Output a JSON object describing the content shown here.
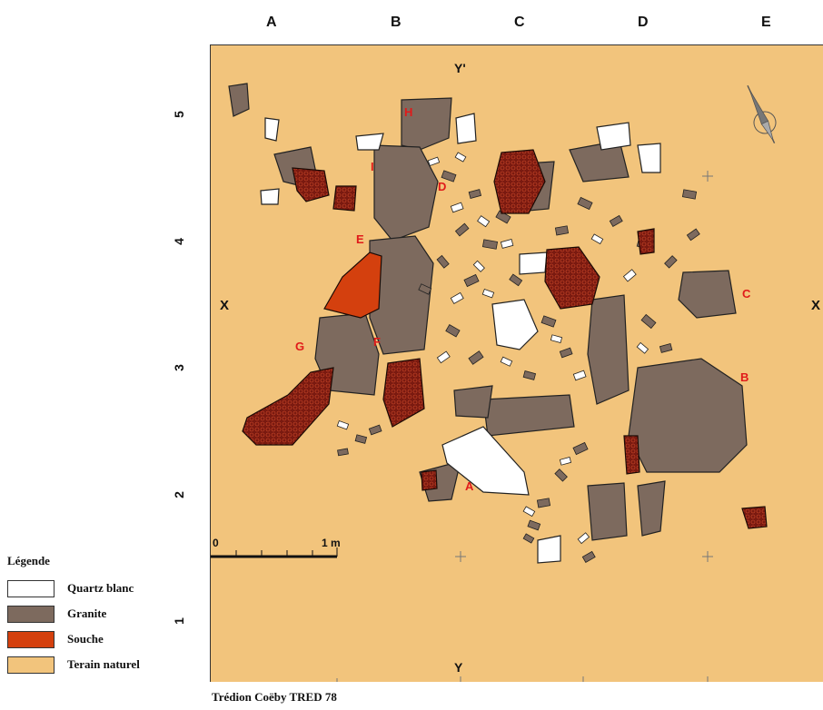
{
  "grid": {
    "columns": [
      "A",
      "B",
      "C",
      "D",
      "E"
    ],
    "rows": [
      "5",
      "4",
      "3",
      "2",
      "1"
    ]
  },
  "axis_markers": {
    "top": "Y'",
    "bottom": "Y",
    "left": "X",
    "right": "X"
  },
  "scale_bar": {
    "start": "0",
    "end": "1 m"
  },
  "feature_labels": [
    "A",
    "B",
    "C",
    "D",
    "E",
    "F",
    "G",
    "H",
    "I",
    "D"
  ],
  "legend": {
    "title": "Légende",
    "items": [
      {
        "label": "Quartz blanc",
        "color": "#ffffff"
      },
      {
        "label": "Granite",
        "color": "#7d6a5e"
      },
      {
        "label": "Souche",
        "color": "#d4400e"
      },
      {
        "label": "Terain naturel",
        "color": "#f2c47c"
      }
    ]
  },
  "colors": {
    "background": "#f2c47c",
    "granite": "#7d6a5e",
    "quartz": "#ffffff",
    "souche_fill": "#7a1a10",
    "souche_highlight": "#d4400e",
    "label_red": "#e01a1a"
  },
  "credit": "Trédion Coëby TRED 78",
  "north_arrow_icon": "north-arrow-icon"
}
